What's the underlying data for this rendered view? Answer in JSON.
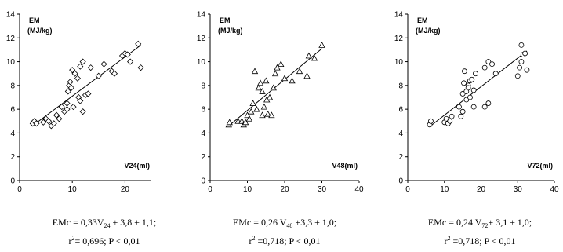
{
  "chart_data": [
    {
      "type": "scatter",
      "marker": "diamond",
      "ylabel_line1": "EM",
      "ylabel_line2": "(MJ/kg)",
      "xlabel": "V24(ml)",
      "xlim": [
        0,
        25
      ],
      "ylim": [
        0,
        14
      ],
      "xticks": [
        0,
        10,
        20
      ],
      "yticks": [
        0,
        2,
        4,
        6,
        8,
        10,
        12,
        14
      ],
      "points": [
        [
          2.5,
          4.8
        ],
        [
          2.8,
          5.0
        ],
        [
          3.2,
          4.8
        ],
        [
          4.5,
          4.9
        ],
        [
          5.0,
          5.2
        ],
        [
          5.5,
          5.0
        ],
        [
          6.0,
          4.6
        ],
        [
          6.5,
          4.8
        ],
        [
          7.0,
          5.5
        ],
        [
          7.5,
          5.2
        ],
        [
          8.0,
          6.2
        ],
        [
          8.5,
          5.8
        ],
        [
          9.0,
          6.0
        ],
        [
          9.0,
          6.5
        ],
        [
          9.2,
          7.5
        ],
        [
          9.4,
          8.0
        ],
        [
          9.6,
          8.3
        ],
        [
          9.8,
          7.8
        ],
        [
          10.0,
          9.3
        ],
        [
          10.2,
          6.2
        ],
        [
          10.5,
          9.0
        ],
        [
          11.0,
          8.6
        ],
        [
          11.2,
          7.0
        ],
        [
          11.5,
          9.6
        ],
        [
          11.5,
          6.7
        ],
        [
          12.0,
          10.0
        ],
        [
          12.0,
          5.8
        ],
        [
          12.5,
          7.2
        ],
        [
          13.0,
          7.3
        ],
        [
          13.5,
          9.5
        ],
        [
          15.0,
          8.8
        ],
        [
          16.0,
          9.8
        ],
        [
          17.5,
          9.2
        ],
        [
          18.0,
          9.0
        ],
        [
          19.5,
          10.5
        ],
        [
          20.0,
          10.7
        ],
        [
          20.5,
          10.6
        ],
        [
          21.0,
          10.0
        ],
        [
          22.5,
          11.5
        ],
        [
          23.0,
          9.5
        ]
      ],
      "fit": {
        "slope": 0.33,
        "intercept": 3.8
      },
      "equation_line1_pre": "EMc = 0,33V",
      "equation_line1_sub": "24",
      "equation_line1_post": " + 3,8 ± 1,1;",
      "equation_line2_pre": "r",
      "equation_line2_sup": "2",
      "equation_line2_post": "= 0,696; P < 0,01"
    },
    {
      "type": "scatter",
      "marker": "triangle",
      "ylabel_line1": "EM",
      "ylabel_line2": "(MJ/kg)",
      "xlabel": "V48(ml)",
      "xlim": [
        0,
        40
      ],
      "ylim": [
        0,
        14
      ],
      "xticks": [
        0,
        10,
        20,
        30,
        40
      ],
      "yticks": [
        0,
        2,
        4,
        6,
        8,
        10,
        12,
        14
      ],
      "points": [
        [
          5.0,
          4.7
        ],
        [
          5.2,
          4.9
        ],
        [
          7.5,
          5.0
        ],
        [
          8.5,
          5.0
        ],
        [
          9.0,
          4.7
        ],
        [
          9.5,
          4.9
        ],
        [
          10.0,
          5.5
        ],
        [
          10.5,
          5.2
        ],
        [
          11.0,
          5.8
        ],
        [
          11.5,
          6.5
        ],
        [
          12.0,
          9.2
        ],
        [
          12.5,
          6.0
        ],
        [
          13.0,
          7.8
        ],
        [
          13.5,
          8.2
        ],
        [
          14.0,
          5.5
        ],
        [
          14.0,
          7.5
        ],
        [
          14.5,
          6.2
        ],
        [
          15.0,
          8.4
        ],
        [
          15.2,
          6.8
        ],
        [
          15.5,
          5.6
        ],
        [
          16.0,
          7.0
        ],
        [
          16.5,
          5.5
        ],
        [
          17.0,
          7.8
        ],
        [
          17.5,
          9.0
        ],
        [
          18.0,
          9.5
        ],
        [
          19.0,
          9.8
        ],
        [
          20.0,
          8.6
        ],
        [
          22.0,
          8.4
        ],
        [
          24.0,
          9.2
        ],
        [
          26.0,
          8.8
        ],
        [
          26.5,
          10.5
        ],
        [
          28.0,
          10.3
        ],
        [
          30.0,
          11.4
        ]
      ],
      "fit": {
        "slope": 0.26,
        "intercept": 3.3
      },
      "equation_line1_pre": "EMc = 0,26 V",
      "equation_line1_sub": "48",
      "equation_line1_post": " +3,3 ± 1,0;",
      "equation_line2_pre": "r",
      "equation_line2_sup": "2",
      "equation_line2_post": " =0,718; P < 0,01"
    },
    {
      "type": "scatter",
      "marker": "circle",
      "ylabel_line1": "EM",
      "ylabel_line2": "(MJ/kg)",
      "xlabel": "V72(ml)",
      "xlim": [
        0,
        40
      ],
      "ylim": [
        0,
        14
      ],
      "xticks": [
        0,
        10,
        20,
        30,
        40
      ],
      "yticks": [
        0,
        2,
        4,
        6,
        8,
        10,
        12,
        14
      ],
      "points": [
        [
          6.0,
          4.7
        ],
        [
          6.3,
          5.0
        ],
        [
          10.0,
          4.9
        ],
        [
          10.5,
          5.2
        ],
        [
          11.0,
          4.8
        ],
        [
          11.5,
          5.0
        ],
        [
          12.0,
          5.4
        ],
        [
          14.0,
          6.2
        ],
        [
          14.5,
          5.4
        ],
        [
          15.0,
          5.8
        ],
        [
          15.0,
          7.3
        ],
        [
          15.3,
          8.2
        ],
        [
          15.5,
          9.2
        ],
        [
          16.0,
          7.5
        ],
        [
          16.0,
          6.8
        ],
        [
          16.5,
          8.0
        ],
        [
          16.5,
          7.8
        ],
        [
          17.0,
          7.0
        ],
        [
          17.0,
          8.4
        ],
        [
          17.5,
          8.5
        ],
        [
          18.0,
          6.2
        ],
        [
          18.0,
          7.6
        ],
        [
          18.5,
          9.0
        ],
        [
          21.0,
          9.5
        ],
        [
          21.0,
          6.2
        ],
        [
          22.0,
          6.5
        ],
        [
          22.0,
          10.0
        ],
        [
          23.0,
          9.8
        ],
        [
          24.0,
          9.0
        ],
        [
          30.0,
          8.8
        ],
        [
          30.5,
          9.5
        ],
        [
          31.0,
          10.0
        ],
        [
          31.0,
          11.4
        ],
        [
          31.5,
          10.6
        ],
        [
          32.0,
          10.7
        ],
        [
          32.5,
          9.3
        ]
      ],
      "fit": {
        "slope": 0.24,
        "intercept": 3.1
      },
      "equation_line1_pre": "EMc = 0,24 V",
      "equation_line1_sub": "72",
      "equation_line1_post": "+ 3,1 ± 1,0;",
      "equation_line2_pre": "r",
      "equation_line2_sup": "2",
      "equation_line2_post": " =0,718; P < 0,01"
    }
  ]
}
